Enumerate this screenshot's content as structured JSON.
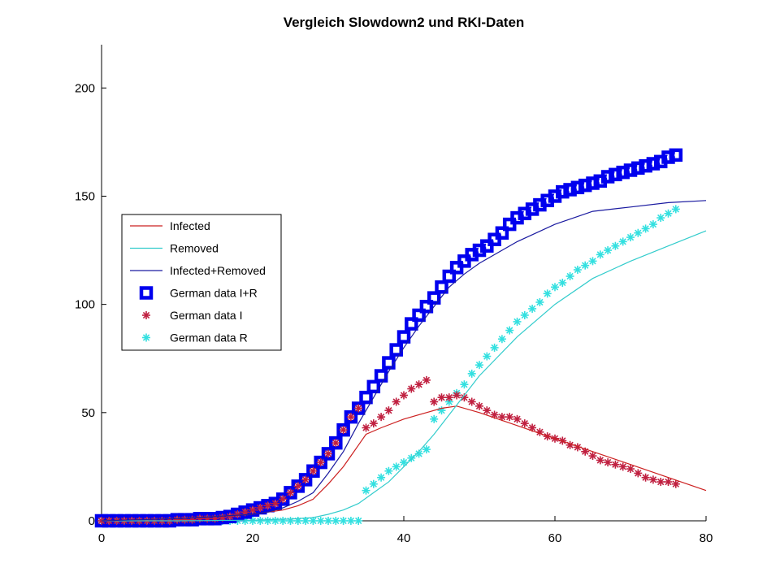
{
  "chart_data": {
    "type": "line",
    "title": "Vergleich Slowdown2 und RKI-Daten",
    "xlabel": "",
    "ylabel": "",
    "xlim": [
      0,
      80
    ],
    "ylim": [
      0,
      220
    ],
    "x_ticks": [
      0,
      20,
      40,
      60,
      80
    ],
    "y_ticks": [
      0,
      50,
      100,
      150,
      200
    ],
    "grid": false,
    "legend_position": "center-left",
    "colors": {
      "infected": "#cc2020",
      "removed": "#33cccc",
      "ir": "#1a1aa0",
      "data_ir": "#0000ee",
      "data_ir_center": "#ffffff",
      "data_i": "#c02040",
      "data_r": "#33e0e0"
    },
    "series": [
      {
        "name": "Infected",
        "kind": "line",
        "color_key": "infected",
        "x": [
          0,
          5,
          10,
          15,
          20,
          22,
          24,
          26,
          28,
          30,
          32,
          33,
          34,
          35,
          37,
          40,
          43,
          45,
          47,
          50,
          55,
          60,
          65,
          70,
          75,
          80
        ],
        "y": [
          0,
          0.5,
          1,
          2,
          3,
          4,
          5,
          7,
          10,
          17,
          25,
          30,
          35,
          40,
          43,
          47,
          50,
          52,
          53,
          50,
          44,
          38,
          32,
          26,
          20,
          14
        ]
      },
      {
        "name": "Removed",
        "kind": "line",
        "color_key": "removed",
        "x": [
          0,
          10,
          20,
          25,
          28,
          30,
          32,
          34,
          36,
          38,
          40,
          42,
          44,
          46,
          48,
          50,
          55,
          60,
          65,
          70,
          75,
          80
        ],
        "y": [
          0,
          0,
          0.3,
          0.8,
          1.5,
          3,
          5,
          8,
          13,
          18,
          25,
          32,
          40,
          49,
          58,
          67,
          85,
          100,
          112,
          120,
          127,
          134
        ]
      },
      {
        "name": "Infected+Removed",
        "kind": "line",
        "color_key": "ir",
        "x": [
          0,
          5,
          10,
          15,
          20,
          22,
          24,
          26,
          28,
          30,
          32,
          34,
          36,
          38,
          40,
          42,
          44,
          46,
          48,
          50,
          55,
          60,
          65,
          70,
          75,
          80
        ],
        "y": [
          0,
          0.5,
          1,
          2,
          3,
          4,
          6,
          9,
          13,
          22,
          32,
          45,
          57,
          69,
          80,
          90,
          99,
          108,
          114,
          119,
          129,
          137,
          143,
          145,
          147,
          148
        ]
      },
      {
        "name": "German data I+R",
        "kind": "square",
        "color_key": "data_ir",
        "x": [
          0,
          1,
          2,
          3,
          4,
          5,
          6,
          7,
          8,
          9,
          10,
          11,
          12,
          13,
          14,
          15,
          16,
          17,
          18,
          19,
          20,
          21,
          22,
          23,
          24,
          25,
          26,
          27,
          28,
          29,
          30,
          31,
          32,
          33,
          34,
          35,
          36,
          37,
          38,
          39,
          40,
          41,
          42,
          43,
          44,
          45,
          46,
          47,
          48,
          49,
          50,
          51,
          52,
          53,
          54,
          55,
          56,
          57,
          58,
          59,
          60,
          61,
          62,
          63,
          64,
          65,
          66,
          67,
          68,
          69,
          70,
          71,
          72,
          73,
          74,
          75,
          76
        ],
        "y": [
          0,
          0,
          0,
          0,
          0,
          0,
          0,
          0,
          0,
          0,
          0.5,
          0.5,
          0.5,
          1,
          1,
          1,
          1.5,
          2,
          3,
          4,
          5,
          6,
          7,
          8,
          10,
          13,
          16,
          19,
          23,
          27,
          31,
          36,
          42,
          48,
          52,
          57,
          62,
          67,
          73,
          79,
          85,
          91,
          95,
          99,
          103,
          108,
          113,
          117,
          120,
          123,
          125,
          127,
          130,
          133,
          137,
          140,
          142,
          144,
          146,
          148,
          150,
          152,
          153,
          154,
          155,
          156,
          157,
          159,
          160,
          161,
          162,
          163,
          164,
          165,
          166,
          168,
          169
        ]
      },
      {
        "name": "German data I",
        "kind": "asterisk",
        "color_key": "data_i",
        "x": [
          0,
          1,
          2,
          3,
          4,
          5,
          6,
          7,
          8,
          9,
          10,
          11,
          12,
          13,
          14,
          15,
          16,
          17,
          18,
          19,
          20,
          21,
          22,
          23,
          24,
          25,
          26,
          27,
          28,
          29,
          30,
          31,
          32,
          33,
          34,
          35,
          36,
          37,
          38,
          39,
          40,
          41,
          42,
          43,
          44,
          45,
          46,
          47,
          48,
          49,
          50,
          51,
          52,
          53,
          54,
          55,
          56,
          57,
          58,
          59,
          60,
          61,
          62,
          63,
          64,
          65,
          66,
          67,
          68,
          69,
          70,
          71,
          72,
          73,
          74,
          75,
          76
        ],
        "y": [
          0,
          0,
          0,
          0,
          0,
          0,
          0,
          0,
          0,
          0,
          0.5,
          0.5,
          0.5,
          1,
          1,
          1,
          1.5,
          2,
          3,
          4,
          5,
          6,
          7,
          8,
          10,
          13,
          16,
          19,
          23,
          27,
          31,
          36,
          42,
          48,
          52,
          43,
          45,
          48,
          51,
          55,
          58,
          61,
          63,
          65,
          55,
          57,
          57,
          58,
          57,
          55,
          53,
          51,
          49,
          48,
          48,
          47,
          45,
          43,
          41,
          39,
          38,
          37,
          35,
          34,
          32,
          30,
          28,
          27,
          26,
          25,
          24,
          22,
          20,
          19,
          18,
          18,
          17
        ]
      },
      {
        "name": "German data R",
        "kind": "asterisk",
        "color_key": "data_r",
        "x": [
          0,
          1,
          2,
          3,
          4,
          5,
          6,
          7,
          8,
          9,
          10,
          11,
          12,
          13,
          14,
          15,
          16,
          17,
          18,
          19,
          20,
          21,
          22,
          23,
          24,
          25,
          26,
          27,
          28,
          29,
          30,
          31,
          32,
          33,
          34,
          35,
          36,
          37,
          38,
          39,
          40,
          41,
          42,
          43,
          44,
          45,
          46,
          47,
          48,
          49,
          50,
          51,
          52,
          53,
          54,
          55,
          56,
          57,
          58,
          59,
          60,
          61,
          62,
          63,
          64,
          65,
          66,
          67,
          68,
          69,
          70,
          71,
          72,
          73,
          74,
          75,
          76
        ],
        "y": [
          0,
          0,
          0,
          0,
          0,
          0,
          0,
          0,
          0,
          0,
          0,
          0,
          0,
          0,
          0,
          0,
          0,
          0,
          0,
          0,
          0,
          0,
          0,
          0,
          0,
          0,
          0,
          0,
          0,
          0,
          0,
          0,
          0,
          0,
          0,
          14,
          17,
          20,
          23,
          25,
          27,
          29,
          31,
          33,
          47,
          51,
          55,
          59,
          63,
          68,
          72,
          76,
          80,
          84,
          88,
          92,
          95,
          98,
          101,
          105,
          108,
          110,
          113,
          116,
          118,
          120,
          123,
          125,
          127,
          129,
          131,
          133,
          135,
          137,
          140,
          142,
          144
        ]
      }
    ]
  }
}
